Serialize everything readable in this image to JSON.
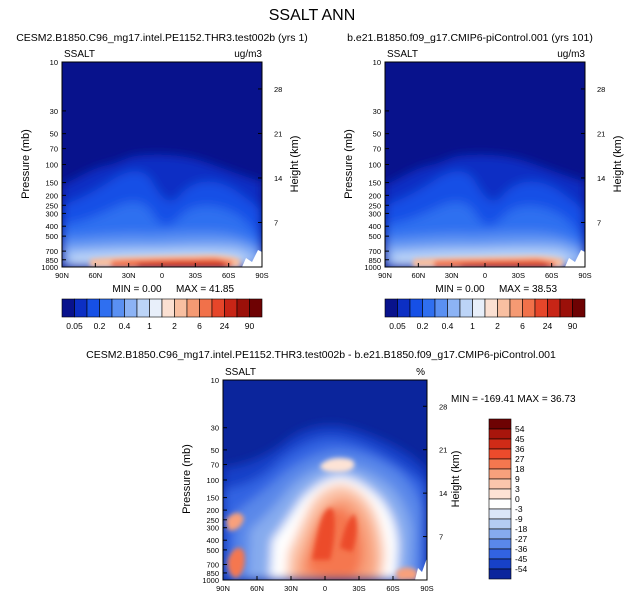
{
  "title": "SSALT ANN",
  "chart_data": [
    {
      "type": "heatmap",
      "title": "CESM2.B1850.C96_mg17.intel.PE1152.THR3.test002b (yrs 1)",
      "variable_label": "SSALT",
      "units_label": "ug/m3",
      "ylabel": "Pressure (mb)",
      "y2label": "Height (km)",
      "x_ticks": [
        "90N",
        "60N",
        "30N",
        "0",
        "30S",
        "60S",
        "90S"
      ],
      "y_ticks": [
        "10",
        "30",
        "50",
        "70",
        "100",
        "150",
        "200",
        "250",
        "300",
        "400",
        "500",
        "700",
        "850",
        "1000"
      ],
      "y_scale": "log",
      "ylim": [
        1000,
        10
      ],
      "y2_ticks": [
        "28",
        "21",
        "14",
        "7"
      ],
      "min_label": "MIN =  0.00",
      "max_label": "MAX = 41.85",
      "colorbar": {
        "orientation": "horizontal",
        "labels": [
          "0.05",
          "0.2",
          "0.4",
          "1",
          "2",
          "6",
          "24",
          "90"
        ],
        "colors": [
          "#08128c",
          "#0c2fc4",
          "#1650e6",
          "#2f6ff0",
          "#5a90f2",
          "#8cb3f5",
          "#bcd4f7",
          "#e8effa",
          "#fbe0d2",
          "#f8bfa1",
          "#f59a73",
          "#f1714a",
          "#e6462a",
          "#c82516",
          "#9b1009",
          "#6e0203"
        ]
      }
    },
    {
      "type": "heatmap",
      "title": "b.e21.B1850.f09_g17.CMIP6-piControl.001 (yrs 101)",
      "variable_label": "SSALT",
      "units_label": "ug/m3",
      "ylabel": "Pressure (mb)",
      "y2label": "Height (km)",
      "x_ticks": [
        "90N",
        "60N",
        "30N",
        "0",
        "30S",
        "60S",
        "90S"
      ],
      "y_ticks": [
        "10",
        "30",
        "50",
        "70",
        "100",
        "150",
        "200",
        "250",
        "300",
        "400",
        "500",
        "700",
        "850",
        "1000"
      ],
      "y_scale": "log",
      "ylim": [
        1000,
        10
      ],
      "y2_ticks": [
        "28",
        "21",
        "14",
        "7"
      ],
      "min_label": "MIN =  0.00",
      "max_label": "MAX = 38.53",
      "colorbar": {
        "orientation": "horizontal",
        "labels": [
          "0.05",
          "0.2",
          "0.4",
          "1",
          "2",
          "6",
          "24",
          "90"
        ],
        "colors": [
          "#08128c",
          "#0c2fc4",
          "#1650e6",
          "#2f6ff0",
          "#5a90f2",
          "#8cb3f5",
          "#bcd4f7",
          "#e8effa",
          "#fbe0d2",
          "#f8bfa1",
          "#f59a73",
          "#f1714a",
          "#e6462a",
          "#c82516",
          "#9b1009",
          "#6e0203"
        ]
      }
    },
    {
      "type": "heatmap",
      "title": "CESM2.B1850.C96_mg17.intel.PE1152.THR3.test002b - b.e21.B1850.f09_g17.CMIP6-piControl.001",
      "variable_label": "SSALT",
      "units_label": "%",
      "ylabel": "Pressure (mb)",
      "y2label": "Height (km)",
      "x_ticks": [
        "90N",
        "60N",
        "30N",
        "0",
        "30S",
        "60S",
        "90S"
      ],
      "y_ticks": [
        "10",
        "30",
        "50",
        "70",
        "100",
        "150",
        "200",
        "250",
        "300",
        "400",
        "500",
        "700",
        "850",
        "1000"
      ],
      "y_scale": "log",
      "ylim": [
        1000,
        10
      ],
      "y2_ticks": [
        "28",
        "21",
        "14",
        "7"
      ],
      "stats_label": "MIN = -169.41  MAX = 36.73",
      "colorbar": {
        "orientation": "vertical",
        "labels": [
          "54",
          "45",
          "36",
          "27",
          "18",
          "9",
          "3",
          "0",
          "-3",
          "-9",
          "-18",
          "-27",
          "-36",
          "-45",
          "-54"
        ],
        "colors": [
          "#6e0203",
          "#a8150c",
          "#d02b17",
          "#ec4b2c",
          "#f5774f",
          "#f8a07c",
          "#fbc6ac",
          "#fde3d5",
          "#ffffff",
          "#dbe6f8",
          "#b4ccf3",
          "#86abee",
          "#5a88e9",
          "#3263e2",
          "#1741c8",
          "#0b259c"
        ]
      }
    }
  ]
}
